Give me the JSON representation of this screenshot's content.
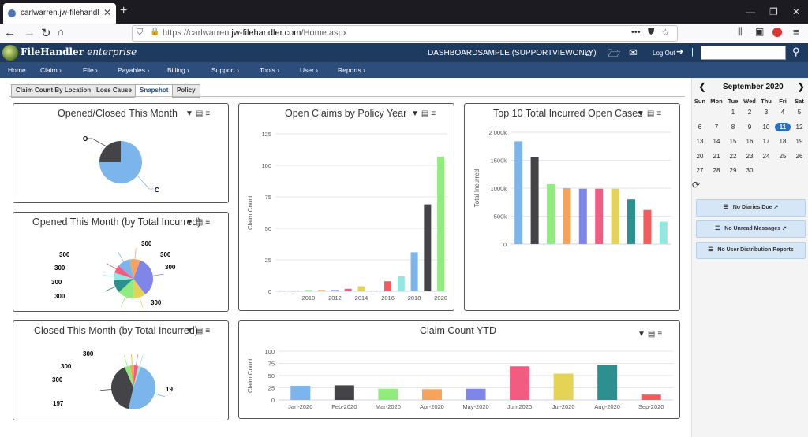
{
  "browser": {
    "tab_title": "carlwarren.jw-filehandler.com/",
    "url_prefix": "https://carlwarren.",
    "url_domain": "jw-filehandler.com",
    "url_path": "/Home.aspx"
  },
  "app": {
    "brand_name": "FileHandler",
    "brand_edition": "enterprise",
    "account": "DASHBOARDSAMPLE (SUPPORTVIEWONLY)",
    "logout": "Log Out"
  },
  "menu": [
    "Home",
    "Claim ›",
    "File ›",
    "Payables ›",
    "Billing ›",
    "Support ›",
    "Tools ›",
    "User ›",
    "Reports ›"
  ],
  "tabs": [
    "Claim Count By Location",
    "Loss Cause",
    "Snapshot",
    "Policy"
  ],
  "active_tab": "Snapshot",
  "panels": {
    "opened_closed": "Opened/Closed This Month",
    "opened_total": "Opened This Month (by Total Incurred)",
    "closed_total": "Closed This Month (by Total Incurred)",
    "policy_year": "Open Claims by Policy Year",
    "top10": "Top 10 Total Incurred Open Cases",
    "ytd": "Claim Count YTD"
  },
  "pie_labels": {
    "oc_o": "O",
    "oc_c": "C",
    "ot": [
      "300",
      "300",
      "300",
      "300",
      "300",
      "300",
      "300",
      "300"
    ],
    "ot_bottom": "300",
    "ct": [
      "300",
      "300",
      "300",
      "19",
      "197"
    ]
  },
  "sidebar": {
    "month": "September 2020",
    "day_names": [
      "Sun",
      "Mon",
      "Tue",
      "Wed",
      "Thu",
      "Fri",
      "Sat"
    ],
    "weeks": [
      [
        "",
        "",
        "1",
        "2",
        "3",
        "4",
        "5"
      ],
      [
        "6",
        "7",
        "8",
        "9",
        "10",
        "11",
        "12"
      ],
      [
        "13",
        "14",
        "15",
        "16",
        "17",
        "18",
        "19"
      ],
      [
        "20",
        "21",
        "22",
        "23",
        "24",
        "25",
        "26"
      ],
      [
        "27",
        "28",
        "29",
        "30",
        "",
        "",
        ""
      ]
    ],
    "today": "11",
    "buttons": [
      "No Diaries Due",
      "No Unread Messages",
      "No User Distribution Reports"
    ]
  },
  "colors": {
    "header": "#1f3a5f",
    "menubar": "#2d4d7c",
    "palette": [
      "#7cb5ec",
      "#434348",
      "#90ed7d",
      "#f7a35c",
      "#8085e9",
      "#f15c80",
      "#e4d354",
      "#2b908f",
      "#f45b5b",
      "#91e8e1"
    ]
  },
  "chart_data": [
    {
      "type": "pie",
      "title": "Opened/Closed This Month",
      "slices": [
        {
          "name": "O",
          "value": 25
        },
        {
          "name": "C",
          "value": 75
        }
      ]
    },
    {
      "type": "bar",
      "title": "Open Claims by Policy Year",
      "ylabel": "Claim Count",
      "ylim": [
        0,
        125
      ],
      "yticks": [
        0,
        25,
        50,
        75,
        100,
        125
      ],
      "x": [
        2008,
        2009,
        2010,
        2011,
        2012,
        2013,
        2014,
        2015,
        2016,
        2017,
        2018,
        2019,
        2020
      ],
      "xtick_labels": [
        "2010",
        "2012",
        "2014",
        "2016",
        "2018",
        "2020"
      ],
      "values": [
        0.5,
        0.5,
        1,
        1,
        1,
        2,
        4,
        0.5,
        8,
        12,
        31,
        69,
        107
      ]
    },
    {
      "type": "bar",
      "title": "Top 10 Total Incurred Open Cases",
      "ylabel": "Total Incurred",
      "ylim": [
        0,
        2000
      ],
      "ytick_labels": [
        "0",
        "500k",
        "1000k",
        "1500k",
        "2 000k"
      ],
      "values": [
        1840,
        1550,
        1070,
        1000,
        990,
        990,
        990,
        800,
        610,
        400
      ]
    },
    {
      "type": "bar",
      "title": "Claim Count YTD",
      "ylabel": "Claim Count",
      "ylim": [
        0,
        100
      ],
      "yticks": [
        0,
        25,
        50,
        75,
        100
      ],
      "categories": [
        "Jan-2020",
        "Feb-2020",
        "Mar-2020",
        "Apr-2020",
        "May-2020",
        "Jun-2020",
        "Jul-2020",
        "Aug-2020",
        "Sep-2020"
      ],
      "values": [
        29,
        30,
        23,
        22,
        23,
        69,
        54,
        72,
        11
      ]
    }
  ]
}
